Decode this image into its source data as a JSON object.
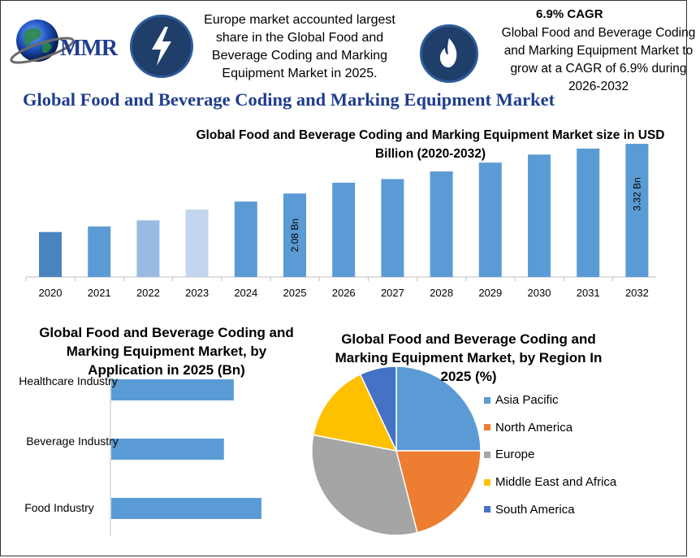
{
  "logo": {
    "text": "MMR"
  },
  "header": {
    "info1": "Europe market accounted largest share in the Global Food and Beverage Coding and Marking Equipment Market in 2025.",
    "cagr_title": "6.9% CAGR",
    "info2": "Global Food and Beverage Coding and Marking Equipment Market to grow at a CAGR of 6.9% during 2026-2032",
    "icon_left": "lightning-bolt-icon",
    "icon_right": "flame-icon"
  },
  "main_title": "Global Food and Beverage Coding and Marking Equipment Market",
  "chart_data": [
    {
      "type": "bar",
      "title": "Global Food and Beverage Coding and Marking Equipment Market size in USD Billion (2020-2032)",
      "categories": [
        "2020",
        "2021",
        "2022",
        "2023",
        "2024",
        "2025",
        "2026",
        "2027",
        "2028",
        "2029",
        "2030",
        "2031",
        "2032"
      ],
      "values": [
        1.12,
        1.26,
        1.41,
        1.68,
        1.88,
        2.08,
        2.35,
        2.44,
        2.63,
        2.85,
        3.05,
        3.2,
        3.32
      ],
      "colors": [
        "#4a84bf",
        "#5b9bd5",
        "#99bbe1",
        "#c2d6ed",
        "#5b9bd5",
        "#5b9bd5",
        "#5b9bd5",
        "#5b9bd5",
        "#5b9bd5",
        "#5b9bd5",
        "#5b9bd5",
        "#5b9bd5",
        "#5b9bd5"
      ],
      "data_labels": [
        {
          "index": 5,
          "text": "2.08 Bn"
        },
        {
          "index": 12,
          "text": "3.32 Bn"
        }
      ],
      "ylim": [
        0,
        3.32
      ]
    },
    {
      "type": "bar",
      "orientation": "horizontal",
      "title": "Global Food and Beverage Coding and Marking Equipment Market, by Application in 2025 (Bn)",
      "categories": [
        "Healthcare Industry",
        "Beverage Industry",
        "Food Industry"
      ],
      "values": [
        0.62,
        0.57,
        0.76
      ],
      "color": "#5b9bd5"
    },
    {
      "type": "pie",
      "title": "Global Food and Beverage Coding and Marking Equipment Market, by Region In 2025 (%)",
      "labels": [
        "Asia Pacific",
        "North America",
        "Europe",
        "Middle East and Africa",
        "South America"
      ],
      "values": [
        25,
        21,
        32,
        15,
        7
      ],
      "colors": [
        "#5b9bd5",
        "#ed7d31",
        "#a5a5a5",
        "#ffc000",
        "#4472c4"
      ],
      "legend_position": "right"
    }
  ]
}
